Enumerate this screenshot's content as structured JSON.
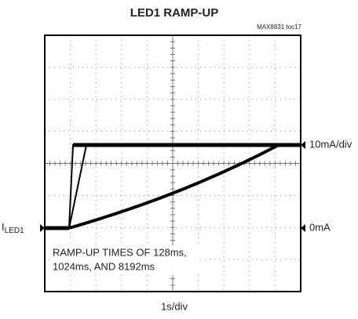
{
  "title": "LED1 RAMP-UP",
  "figure_id": "MAX8831 toc17",
  "labels": {
    "y_scale": "10mA/div",
    "zero": "0mA",
    "trace": "I",
    "trace_sub": "LED1",
    "annotation": [
      "RAMP-UP TIMES OF 128ms,",
      "1024ms, AND 8192ms"
    ],
    "x_scale": "1s/div"
  }
}
